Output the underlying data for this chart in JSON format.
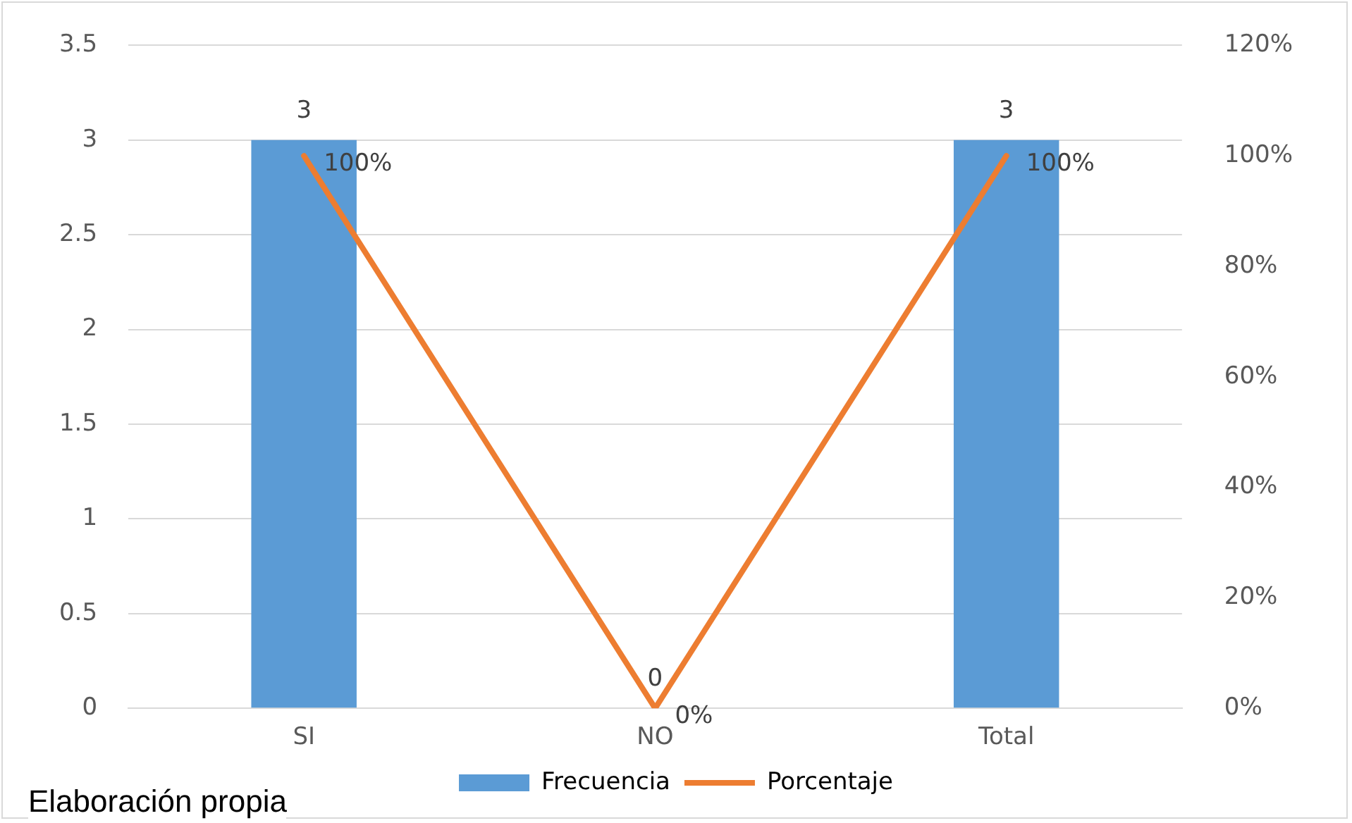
{
  "chart_data": {
    "type": "bar",
    "categories": [
      "SI",
      "NO",
      "Total"
    ],
    "series": [
      {
        "name": "Frecuencia",
        "color": "#5b9bd5",
        "values": [
          3,
          0,
          3
        ],
        "value_labels": [
          "3",
          "0",
          "3"
        ]
      },
      {
        "name": "Porcentaje",
        "type": "line",
        "axis": "y2",
        "color": "#ed7d31",
        "values": [
          100,
          0,
          100
        ],
        "value_labels": [
          "100%",
          "0%",
          "100%"
        ]
      }
    ],
    "ylim": [
      0,
      3.5
    ],
    "yticks": [
      0,
      0.5,
      1,
      1.5,
      2,
      2.5,
      3,
      3.5
    ],
    "y2lim": [
      0,
      120
    ],
    "y2ticks": [
      {
        "value": 0,
        "label": "0%"
      },
      {
        "value": 20,
        "label": "20%"
      },
      {
        "value": 40,
        "label": "40%"
      },
      {
        "value": 60,
        "label": "60%"
      },
      {
        "value": 80,
        "label": "80%"
      },
      {
        "value": 100,
        "label": "100%"
      },
      {
        "value": 120,
        "label": "120%"
      }
    ],
    "grid": "y",
    "legend": "bottom",
    "marker": "none",
    "line_style": "solid",
    "annotations": [
      "Elaboración propia"
    ]
  }
}
